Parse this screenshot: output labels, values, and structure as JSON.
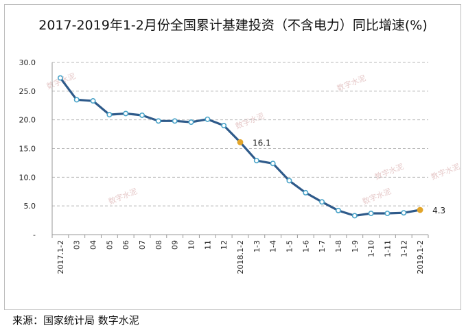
{
  "chart_data": {
    "type": "line",
    "title": "2017-2019年1-2月份全国累计基建投资（不含电力）同比增速(%)",
    "categories": [
      "2017.1-2",
      "03",
      "04",
      "05",
      "06",
      "07",
      "08",
      "09",
      "10",
      "11",
      "12",
      "2018.1-2",
      "1-3",
      "1-4",
      "1-5",
      "1-6",
      "1-7",
      "1-8",
      "1-9",
      "1-10",
      "1-11",
      "1-12",
      "2019.1-2"
    ],
    "series": [
      {
        "values": [
          27.3,
          23.5,
          23.3,
          20.9,
          21.1,
          20.8,
          19.8,
          19.8,
          19.6,
          20.1,
          19.0,
          16.1,
          12.9,
          12.4,
          9.4,
          7.3,
          5.7,
          4.2,
          3.3,
          3.7,
          3.7,
          3.8,
          4.3
        ]
      }
    ],
    "ylim": [
      0,
      30
    ],
    "yticks": [
      "-",
      "5.0",
      "10.0",
      "15.0",
      "20.0",
      "25.0",
      "30.0"
    ],
    "grid": true,
    "annotations": [
      {
        "index": 11,
        "label": "16.1"
      },
      {
        "index": 22,
        "label": "4.3"
      }
    ],
    "colors": {
      "line": "#2e5a8a",
      "marker_fill": "#ffffff",
      "marker_edge": "#4aa3c8",
      "highlight": "#e2a52a",
      "grid": "#b8b8b8"
    }
  },
  "watermark": "数字水泥",
  "source": "来源：国家统计局   数字水泥"
}
